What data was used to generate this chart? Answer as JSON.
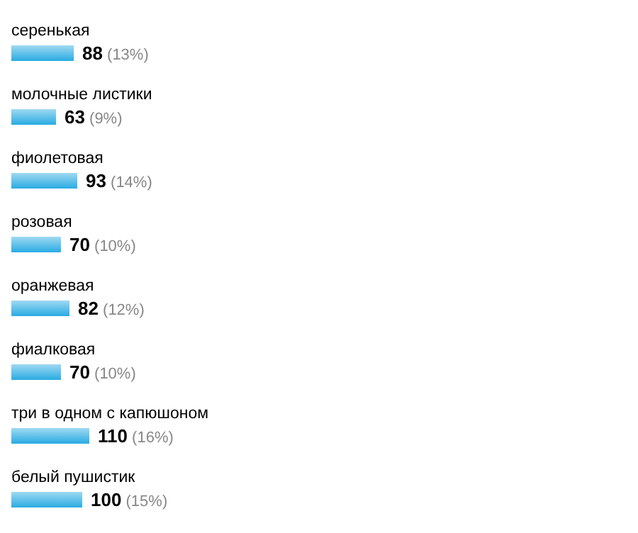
{
  "chart_data": {
    "type": "bar",
    "orientation": "horizontal",
    "categories": [
      "серенькая",
      "молочные листики",
      "фиолетовая",
      "розовая",
      "оранжевая",
      "фиалковая",
      "три в одном с капюшоном",
      "белый пушистик"
    ],
    "values": [
      88,
      63,
      93,
      70,
      82,
      70,
      110,
      100
    ],
    "value_labels": [
      "88 (13%)",
      "63 (9%)",
      "93 (14%)",
      "70 (10%)",
      "82 (12%)",
      "70 (10%)",
      "110 (16%)",
      "100 (15%)"
    ],
    "color": "#29abe2"
  }
}
